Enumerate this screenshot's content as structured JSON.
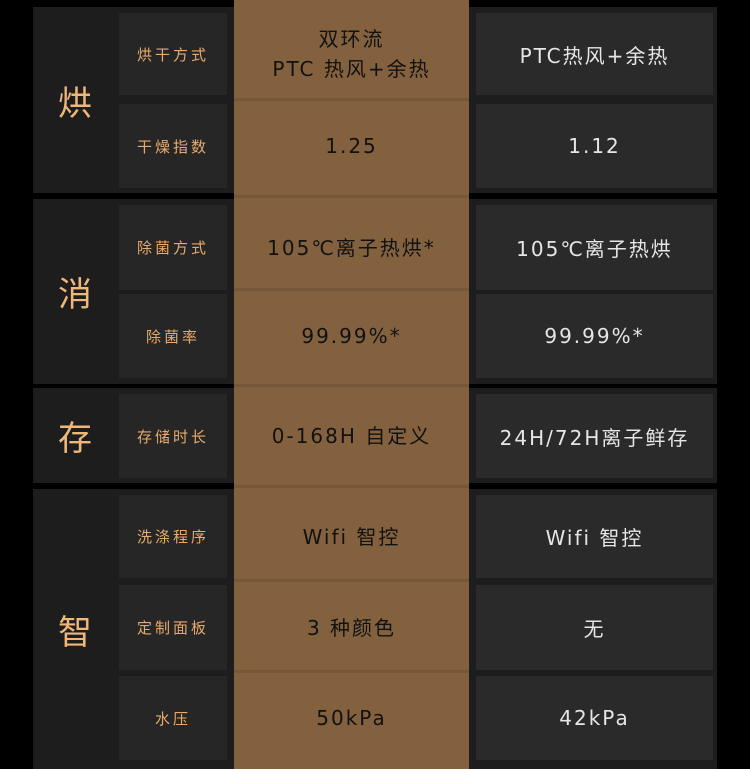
{
  "colors": {
    "background": "#000000",
    "accent_column": "#83613f",
    "category_text": "#f0b77a",
    "label_text": "#e8aa6c"
  },
  "groups": [
    {
      "category": "烘",
      "rows": [
        {
          "label": "烘干方式",
          "ours": [
            "双环流",
            "PTC 热风+余热"
          ],
          "other": "PTC热风+余热"
        },
        {
          "label": "干燥指数",
          "ours": [
            "1.25"
          ],
          "other": "1.12"
        }
      ]
    },
    {
      "category": "消",
      "rows": [
        {
          "label": "除菌方式",
          "ours": [
            "105℃离子热烘*"
          ],
          "other": "105℃离子热烘"
        },
        {
          "label": "除菌率",
          "ours": [
            "99.99%*"
          ],
          "other": "99.99%*"
        }
      ]
    },
    {
      "category": "存",
      "rows": [
        {
          "label": "存储时长",
          "ours": [
            "0-168H 自定义"
          ],
          "other": "24H/72H离子鲜存"
        }
      ]
    },
    {
      "category": "智",
      "rows": [
        {
          "label": "洗涤程序",
          "ours": [
            "Wifi 智控"
          ],
          "other": "Wifi 智控"
        },
        {
          "label": "定制面板",
          "ours": [
            "3 种颜色"
          ],
          "other": "无"
        },
        {
          "label": "水压",
          "ours": [
            "50kPa"
          ],
          "other": "42kPa"
        }
      ]
    }
  ]
}
